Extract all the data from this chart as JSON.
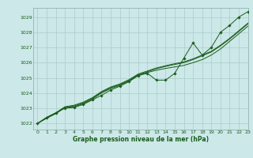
{
  "title": "Graphe pression niveau de la mer (hPa)",
  "bg_color": "#cce8e8",
  "grid_color": "#aacccc",
  "line_color": "#1a5c1a",
  "marker_color": "#1a5c1a",
  "xlim": [
    -0.5,
    23
  ],
  "ylim": [
    1021.6,
    1029.6
  ],
  "yticks": [
    1022,
    1023,
    1024,
    1025,
    1026,
    1027,
    1028,
    1029
  ],
  "xticks": [
    0,
    1,
    2,
    3,
    4,
    5,
    6,
    7,
    8,
    9,
    10,
    11,
    12,
    13,
    14,
    15,
    16,
    17,
    18,
    19,
    20,
    21,
    22,
    23
  ],
  "hours": [
    0,
    1,
    2,
    3,
    4,
    5,
    6,
    7,
    8,
    9,
    10,
    11,
    12,
    13,
    14,
    15,
    16,
    17,
    18,
    19,
    20,
    21,
    22,
    23
  ],
  "line1": [
    1022.0,
    1022.4,
    1022.7,
    1023.0,
    1023.05,
    1023.25,
    1023.55,
    1023.85,
    1024.2,
    1024.45,
    1024.75,
    1025.15,
    1025.3,
    1024.85,
    1024.85,
    1025.3,
    1026.3,
    1027.3,
    1026.5,
    1027.0,
    1028.0,
    1028.45,
    1029.0,
    1029.35
  ],
  "line2": [
    1022.0,
    1022.35,
    1022.65,
    1023.05,
    1023.1,
    1023.3,
    1023.6,
    1024.0,
    1024.3,
    1024.5,
    1024.78,
    1025.15,
    1025.35,
    1025.5,
    1025.62,
    1025.72,
    1025.82,
    1026.0,
    1026.2,
    1026.5,
    1026.9,
    1027.4,
    1027.9,
    1028.4
  ],
  "line3": [
    1022.0,
    1022.35,
    1022.65,
    1023.05,
    1023.15,
    1023.35,
    1023.65,
    1024.05,
    1024.35,
    1024.55,
    1024.83,
    1025.2,
    1025.4,
    1025.6,
    1025.75,
    1025.88,
    1026.0,
    1026.2,
    1026.45,
    1026.7,
    1027.1,
    1027.55,
    1028.05,
    1028.55
  ],
  "line4": [
    1022.0,
    1022.4,
    1022.7,
    1023.1,
    1023.2,
    1023.4,
    1023.7,
    1024.1,
    1024.4,
    1024.6,
    1024.88,
    1025.25,
    1025.45,
    1025.65,
    1025.8,
    1025.93,
    1026.05,
    1026.25,
    1026.5,
    1026.75,
    1027.15,
    1027.6,
    1028.1,
    1028.6
  ]
}
